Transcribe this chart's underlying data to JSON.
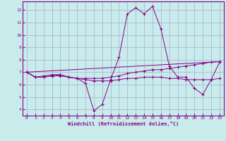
{
  "xlabel": "Windchill (Refroidissement éolien,°C)",
  "bg_color": "#c8ecec",
  "line_color": "#880088",
  "grid_color": "#aaaacc",
  "xlim": [
    -0.5,
    23.5
  ],
  "ylim": [
    3.5,
    12.7
  ],
  "xticks": [
    0,
    1,
    2,
    3,
    4,
    5,
    6,
    7,
    8,
    9,
    10,
    11,
    12,
    13,
    14,
    15,
    16,
    17,
    18,
    19,
    20,
    21,
    22,
    23
  ],
  "yticks": [
    4,
    5,
    6,
    7,
    8,
    9,
    10,
    11,
    12
  ],
  "line1_x": [
    0,
    1,
    2,
    3,
    4,
    5,
    6,
    7,
    8,
    9,
    10,
    11,
    12,
    13,
    14,
    15,
    16,
    17,
    18,
    19,
    20,
    21,
    22,
    23
  ],
  "line1_y": [
    7.0,
    6.6,
    6.7,
    6.8,
    6.8,
    6.6,
    6.5,
    6.1,
    3.9,
    4.4,
    6.4,
    8.2,
    11.7,
    12.2,
    11.7,
    12.3,
    10.5,
    7.5,
    6.6,
    6.6,
    5.7,
    5.2,
    6.4,
    7.8
  ],
  "line2_x": [
    0,
    1,
    2,
    3,
    4,
    5,
    6,
    7,
    8,
    9,
    10,
    11,
    12,
    13,
    14,
    15,
    16,
    17,
    18,
    19,
    20,
    21,
    22,
    23
  ],
  "line2_y": [
    7.0,
    6.6,
    6.6,
    6.7,
    6.8,
    6.6,
    6.5,
    6.5,
    6.5,
    6.5,
    6.6,
    6.7,
    6.9,
    7.0,
    7.1,
    7.2,
    7.2,
    7.3,
    7.4,
    7.5,
    7.6,
    7.7,
    7.8,
    7.85
  ],
  "line3_x": [
    0,
    1,
    2,
    3,
    4,
    5,
    6,
    7,
    8,
    9,
    10,
    11,
    12,
    13,
    14,
    15,
    16,
    17,
    18,
    19,
    20,
    21,
    22,
    23
  ],
  "line3_y": [
    7.0,
    6.6,
    6.6,
    6.7,
    6.7,
    6.6,
    6.5,
    6.4,
    6.3,
    6.3,
    6.3,
    6.4,
    6.5,
    6.5,
    6.6,
    6.6,
    6.6,
    6.5,
    6.5,
    6.4,
    6.4,
    6.4,
    6.4,
    6.5
  ],
  "line4_x": [
    0,
    23
  ],
  "line4_y": [
    7.0,
    7.85
  ]
}
